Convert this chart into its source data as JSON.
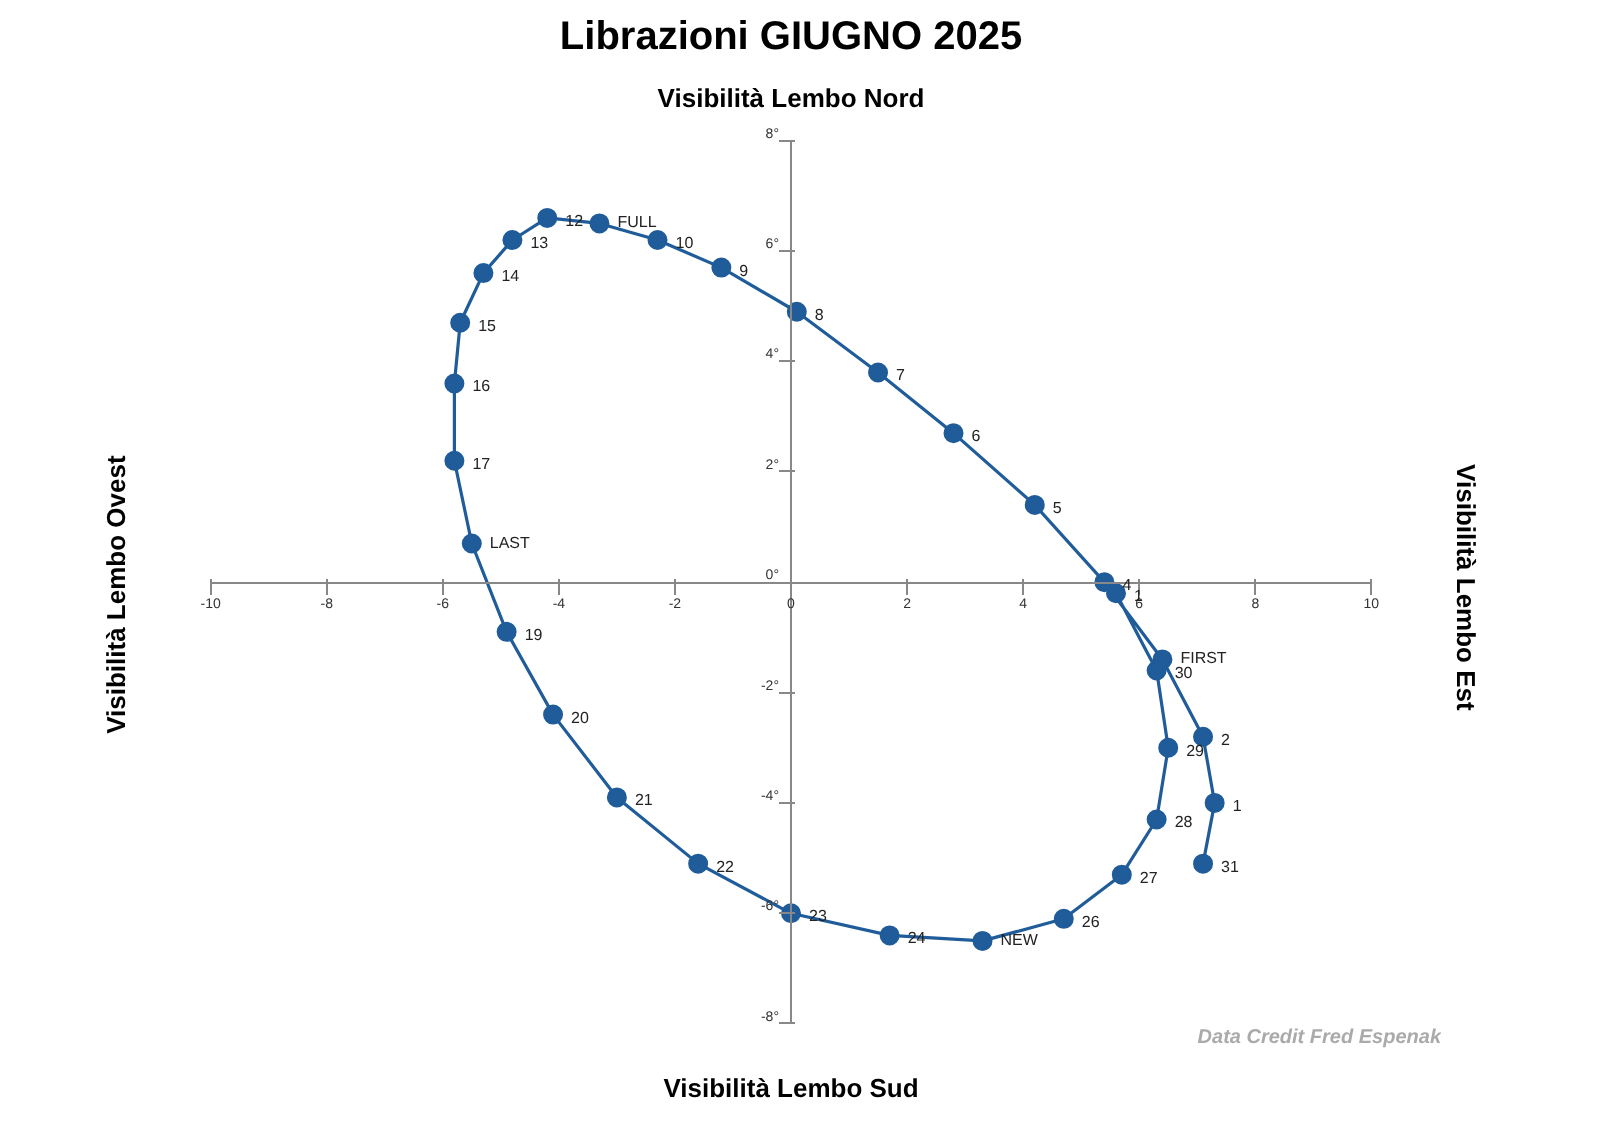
{
  "chart_data": {
    "type": "line",
    "title": "Librazioni GIUGNO 2025",
    "xlabel": "Visibilità Lembo Sud",
    "ylabel": "Visibilità Lembo  Ovest",
    "y2label": "Visibilità Lembo  Est",
    "annotations": [
      "Visibilità Lembo Nord",
      "Data Credit Fred Espenak",
      {
        "text": "31",
        "x": 7.1,
        "y": -5.1
      },
      {
        "text": "1",
        "x": 7.3,
        "y": -4.0
      },
      {
        "text": "2",
        "x": 7.1,
        "y": -2.8
      },
      {
        "text": "FIRST",
        "x": 6.4,
        "y": -1.4
      },
      {
        "text": "4",
        "x": 5.4,
        "y": 0.0
      },
      {
        "text": "5",
        "x": 4.2,
        "y": 1.4
      },
      {
        "text": "6",
        "x": 2.8,
        "y": 2.7
      },
      {
        "text": "7",
        "x": 1.5,
        "y": 3.8
      },
      {
        "text": "8",
        "x": 0.1,
        "y": 4.9
      },
      {
        "text": "9",
        "x": -1.2,
        "y": 5.7
      },
      {
        "text": "10",
        "x": -2.3,
        "y": 6.2
      },
      {
        "text": "FULL",
        "x": -3.3,
        "y": 6.5
      },
      {
        "text": "12",
        "x": -4.2,
        "y": 6.6
      },
      {
        "text": "13",
        "x": -4.8,
        "y": 6.2
      },
      {
        "text": "14",
        "x": -5.3,
        "y": 5.6
      },
      {
        "text": "15",
        "x": -5.7,
        "y": 4.7
      },
      {
        "text": "16",
        "x": -5.8,
        "y": 3.6
      },
      {
        "text": "17",
        "x": -5.8,
        "y": 2.2
      },
      {
        "text": "LAST",
        "x": -5.5,
        "y": 0.7
      },
      {
        "text": "19",
        "x": -4.9,
        "y": -0.9
      },
      {
        "text": "20",
        "x": -4.1,
        "y": -2.4
      },
      {
        "text": "21",
        "x": -3.0,
        "y": -3.9
      },
      {
        "text": "22",
        "x": -1.6,
        "y": -5.1
      },
      {
        "text": "23",
        "x": 0.0,
        "y": -6.0
      },
      {
        "text": "24",
        "x": 1.7,
        "y": -6.4
      },
      {
        "text": "NEW",
        "x": 3.3,
        "y": -6.5
      },
      {
        "text": "26",
        "x": 4.7,
        "y": -6.1
      },
      {
        "text": "27",
        "x": 5.7,
        "y": -5.3
      },
      {
        "text": "28",
        "x": 6.3,
        "y": -4.3
      },
      {
        "text": "29",
        "x": 6.5,
        "y": -3.0
      },
      {
        "text": "30",
        "x": 6.3,
        "y": -1.6
      },
      {
        "text": "1",
        "x": 5.6,
        "y": -0.2
      }
    ],
    "marker": "circle",
    "line_style": "solid",
    "xlim": [
      -10,
      10
    ],
    "xticks": [
      -10,
      -8,
      -6,
      -4,
      -2,
      0,
      2,
      4,
      6,
      8,
      10
    ],
    "ylim": [
      -8,
      8
    ],
    "yticks": [
      {
        "value": -8,
        "label": "-8°"
      },
      {
        "value": -6,
        "label": "-6°"
      },
      {
        "value": -4,
        "label": "-4°"
      },
      {
        "value": -2,
        "label": "-2°"
      },
      {
        "value": 0,
        "label": "0°"
      },
      {
        "value": 2,
        "label": "2°"
      },
      {
        "value": 4,
        "label": "4°"
      },
      {
        "value": 6,
        "label": "6°"
      },
      {
        "value": 8,
        "label": "8°"
      }
    ],
    "series": [
      {
        "color": "#1f5c99",
        "x": [
          7.1,
          7.3,
          7.1,
          6.4,
          5.4,
          4.2,
          2.8,
          1.5,
          0.1,
          -1.2,
          -2.3,
          -3.3,
          -4.2,
          -4.8,
          -5.3,
          -5.7,
          -5.8,
          -5.8,
          -5.5,
          -4.9,
          -4.1,
          -3.0,
          -1.6,
          0.0,
          1.7,
          3.3,
          4.7,
          5.7,
          6.3,
          6.5,
          6.3,
          5.6
        ],
        "values": [
          -5.1,
          -4.0,
          -2.8,
          -1.4,
          0.0,
          1.4,
          2.7,
          3.8,
          4.9,
          5.7,
          6.2,
          6.5,
          6.6,
          6.2,
          5.6,
          4.7,
          3.6,
          2.2,
          0.7,
          -0.9,
          -2.4,
          -3.9,
          -5.1,
          -6.0,
          -6.4,
          -6.5,
          -6.1,
          -5.3,
          -4.3,
          -3.0,
          -1.6,
          -0.2
        ]
      }
    ]
  }
}
